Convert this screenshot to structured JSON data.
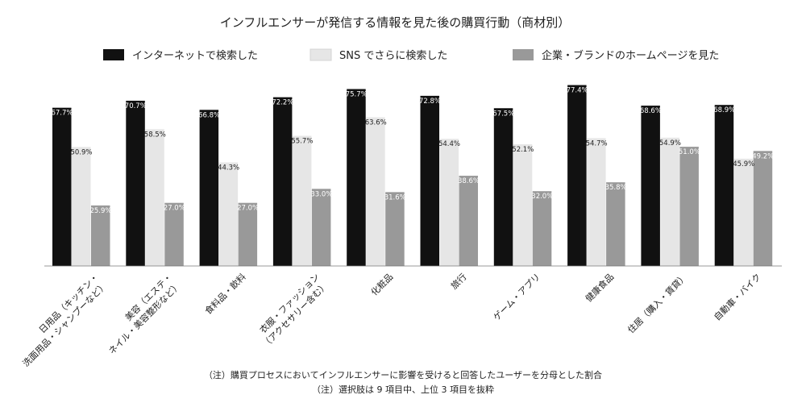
{
  "chart_data": {
    "type": "bar",
    "title": "インフルエンサーが発信する情報を見た後の購買行動（商材別）",
    "categories": [
      [
        "日用品（キッチン・",
        "洗面用品・シャンプーなど）"
      ],
      [
        "美容（エステ・",
        "ネイル・美容整形など）"
      ],
      [
        "食料品・飲料"
      ],
      [
        "衣服・ファッション",
        "（アクセサリー含む）"
      ],
      [
        "化粧品"
      ],
      [
        "旅行"
      ],
      [
        "ゲーム・アプリ"
      ],
      [
        "健康食品"
      ],
      [
        "住居（購入・賃貸）"
      ],
      [
        "自動車・バイク"
      ]
    ],
    "series": [
      {
        "name": "インターネットで検索した",
        "color": "#111111",
        "values": [
          67.7,
          70.7,
          66.8,
          72.2,
          75.7,
          72.8,
          67.5,
          77.4,
          68.6,
          68.9
        ],
        "labels": [
          "67.7%",
          "70.7%",
          "66.8%",
          "72.2%",
          "75.7%",
          "72.8%",
          "67.5%",
          "77.4%",
          "68.6%",
          "68.9%"
        ]
      },
      {
        "name": "SNS でさらに検索した",
        "color": "#e6e6e6",
        "values": [
          50.9,
          58.5,
          44.3,
          55.7,
          63.6,
          54.4,
          52.1,
          54.7,
          54.9,
          45.9
        ],
        "labels": [
          "50.9%",
          "58.5%",
          "44.3%",
          "55.7%",
          "63.6%",
          "54.4%",
          "52.1%",
          "54.7%",
          "54.9%",
          "45.9%"
        ]
      },
      {
        "name": "企業・ブランドのホームページを見た",
        "color": "#999999",
        "values": [
          25.9,
          27.0,
          27.0,
          33.0,
          31.6,
          38.6,
          32.0,
          35.8,
          51.0,
          49.2
        ],
        "labels": [
          "25.9%",
          "27.0%",
          "27.0%",
          "33.0%",
          "31.6%",
          "38.6%",
          "32.0%",
          "35.8%",
          "51.0%",
          "49.2%"
        ]
      }
    ],
    "ylim": [
      0,
      80
    ],
    "grid": false,
    "legend": "top"
  },
  "notes": [
    "（注）購買プロセスにおいてインフルエンサーに影響を受けると回答したユーザーを分母とした割合",
    "（注）選択肢は 9 項目中、上位 3 項目を抜粋"
  ]
}
